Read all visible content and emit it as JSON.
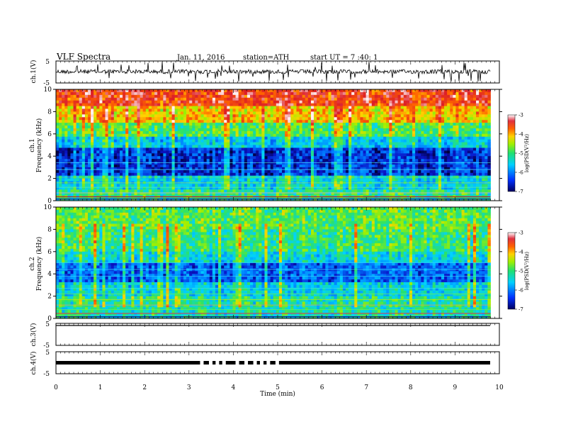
{
  "header": {
    "title": "VLF  Spectra",
    "date": "Jan. 11, 2016",
    "station": "station=ATH",
    "start": "start  UT  =    7  :40: 1"
  },
  "chart_data": {
    "type": "heatmap",
    "xlabel": "Time  (min)",
    "xlim": [
      0,
      10
    ],
    "xticks": [
      "0",
      "1",
      "2",
      "3",
      "4",
      "5",
      "6",
      "7",
      "8",
      "9",
      "10"
    ],
    "data_end_min": 9.8,
    "panels": [
      {
        "id": "ch1-waveform",
        "type": "line",
        "ylabel": "ch.1(V)",
        "ylim": [
          -5,
          5
        ],
        "yticks": [
          "5",
          "-5"
        ]
      },
      {
        "id": "ch1-spectrogram",
        "type": "heatmap",
        "ylabel_top": "ch.1",
        "ylabel": "Frequency  (kHz)",
        "ylim": [
          0,
          10
        ],
        "yticks": [
          "0",
          "2",
          "4",
          "6",
          "8",
          "10"
        ],
        "colorbar": {
          "label": "log(PSD(V²/Hz)",
          "ticks": [
            "-3",
            "-4",
            "-5",
            "-6",
            "-7"
          ],
          "range": [
            -7,
            -3
          ]
        }
      },
      {
        "id": "ch2-spectrogram",
        "type": "heatmap",
        "ylabel_top": "ch.2",
        "ylabel": "Frequency  (kHz)",
        "ylim": [
          0,
          10
        ],
        "yticks": [
          "0",
          "2",
          "4",
          "6",
          "8",
          "10"
        ],
        "colorbar": {
          "label": "log(PSD(V²/Hz)",
          "ticks": [
            "-3",
            "-4",
            "-5",
            "-6",
            "-7"
          ],
          "range": [
            -7,
            -3
          ]
        }
      },
      {
        "id": "ch3-waveform",
        "type": "line",
        "ylabel": "ch.3(V)",
        "ylim": [
          -5,
          5
        ],
        "yticks": [
          "5",
          "-5"
        ]
      },
      {
        "id": "ch4-waveform",
        "type": "line",
        "ylabel": "ch.4(V)",
        "ylim": [
          -5,
          5
        ],
        "yticks": [
          "5",
          "-5"
        ]
      }
    ],
    "colors": {
      "colormap": [
        "#1a0a8f",
        "#0040ff",
        "#00c8ff",
        "#28e0a0",
        "#60f040",
        "#f0f000",
        "#ff8000",
        "#e01010",
        "#ffffff"
      ]
    }
  }
}
